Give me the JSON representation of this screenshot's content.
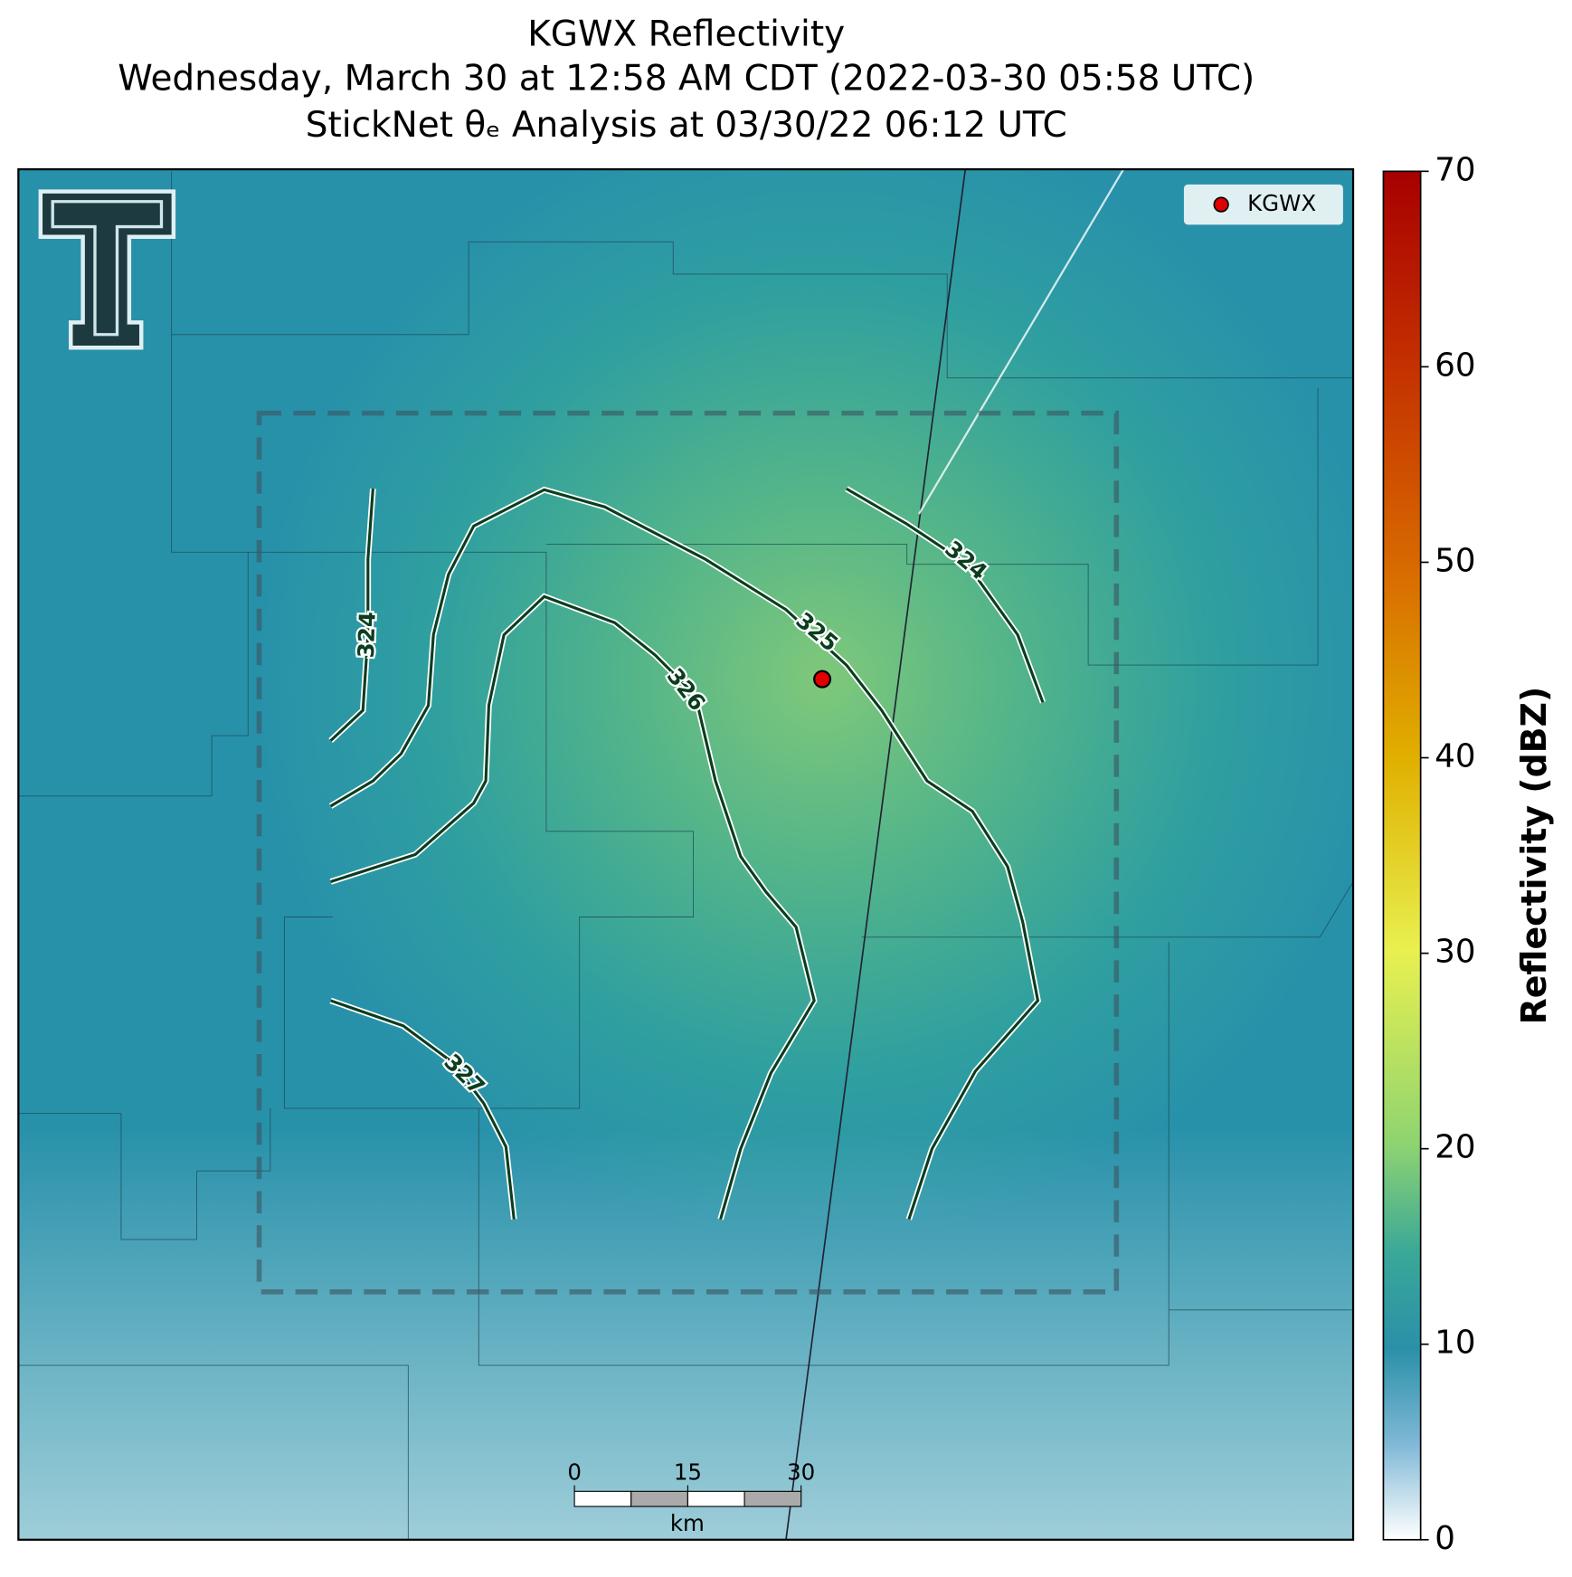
{
  "map": {
    "title": [
      "KGWX Reflectivity",
      "Wednesday, March 30 at 12:58 AM CDT (2022-03-30 05:58 UTC)",
      "StickNet θₑ Analysis at 03/30/22 06:12 UTC"
    ],
    "legend": "KGWX",
    "contour_levels": [
      324,
      325,
      326,
      327,
      324
    ],
    "colorbar": {
      "label": "Reflectivity (dBZ)",
      "lim": [
        0,
        70
      ],
      "ticks": [
        0,
        10,
        20,
        30,
        40,
        50,
        60,
        70
      ]
    },
    "scale_bar": {
      "ticks": [
        0,
        15,
        30
      ],
      "unit": "km"
    }
  }
}
